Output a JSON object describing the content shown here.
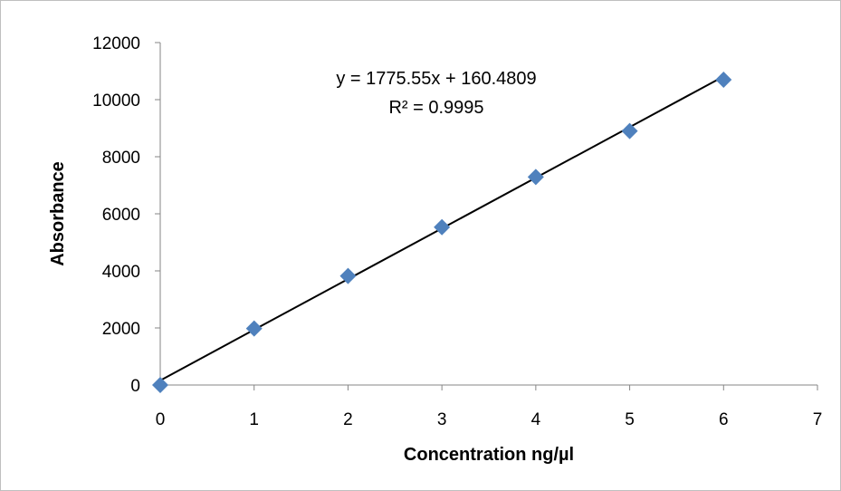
{
  "chart_data": {
    "type": "scatter",
    "xlabel": "Concentration ng/µl",
    "ylabel": "Absorbance",
    "xlim": [
      0,
      7
    ],
    "ylim": [
      0,
      12000
    ],
    "x_ticks": [
      0,
      1,
      2,
      3,
      4,
      5,
      6,
      7
    ],
    "y_ticks": [
      0,
      2000,
      4000,
      6000,
      8000,
      10000,
      12000
    ],
    "grid": false,
    "marker": "diamond",
    "marker_color": "#4f81bd",
    "trendline_color": "#000000",
    "series": [
      {
        "x": [
          0,
          1,
          2,
          3,
          4,
          5,
          6
        ],
        "y": [
          0,
          1980,
          3820,
          5530,
          7290,
          8900,
          10700
        ]
      }
    ],
    "trendline": {
      "slope": 1775.55,
      "intercept": 160.4809,
      "x_range": [
        0,
        6
      ]
    },
    "annotations": {
      "equation": "y = 1775.55x + 160.4809",
      "r_squared": "R² = 0.9995"
    }
  }
}
